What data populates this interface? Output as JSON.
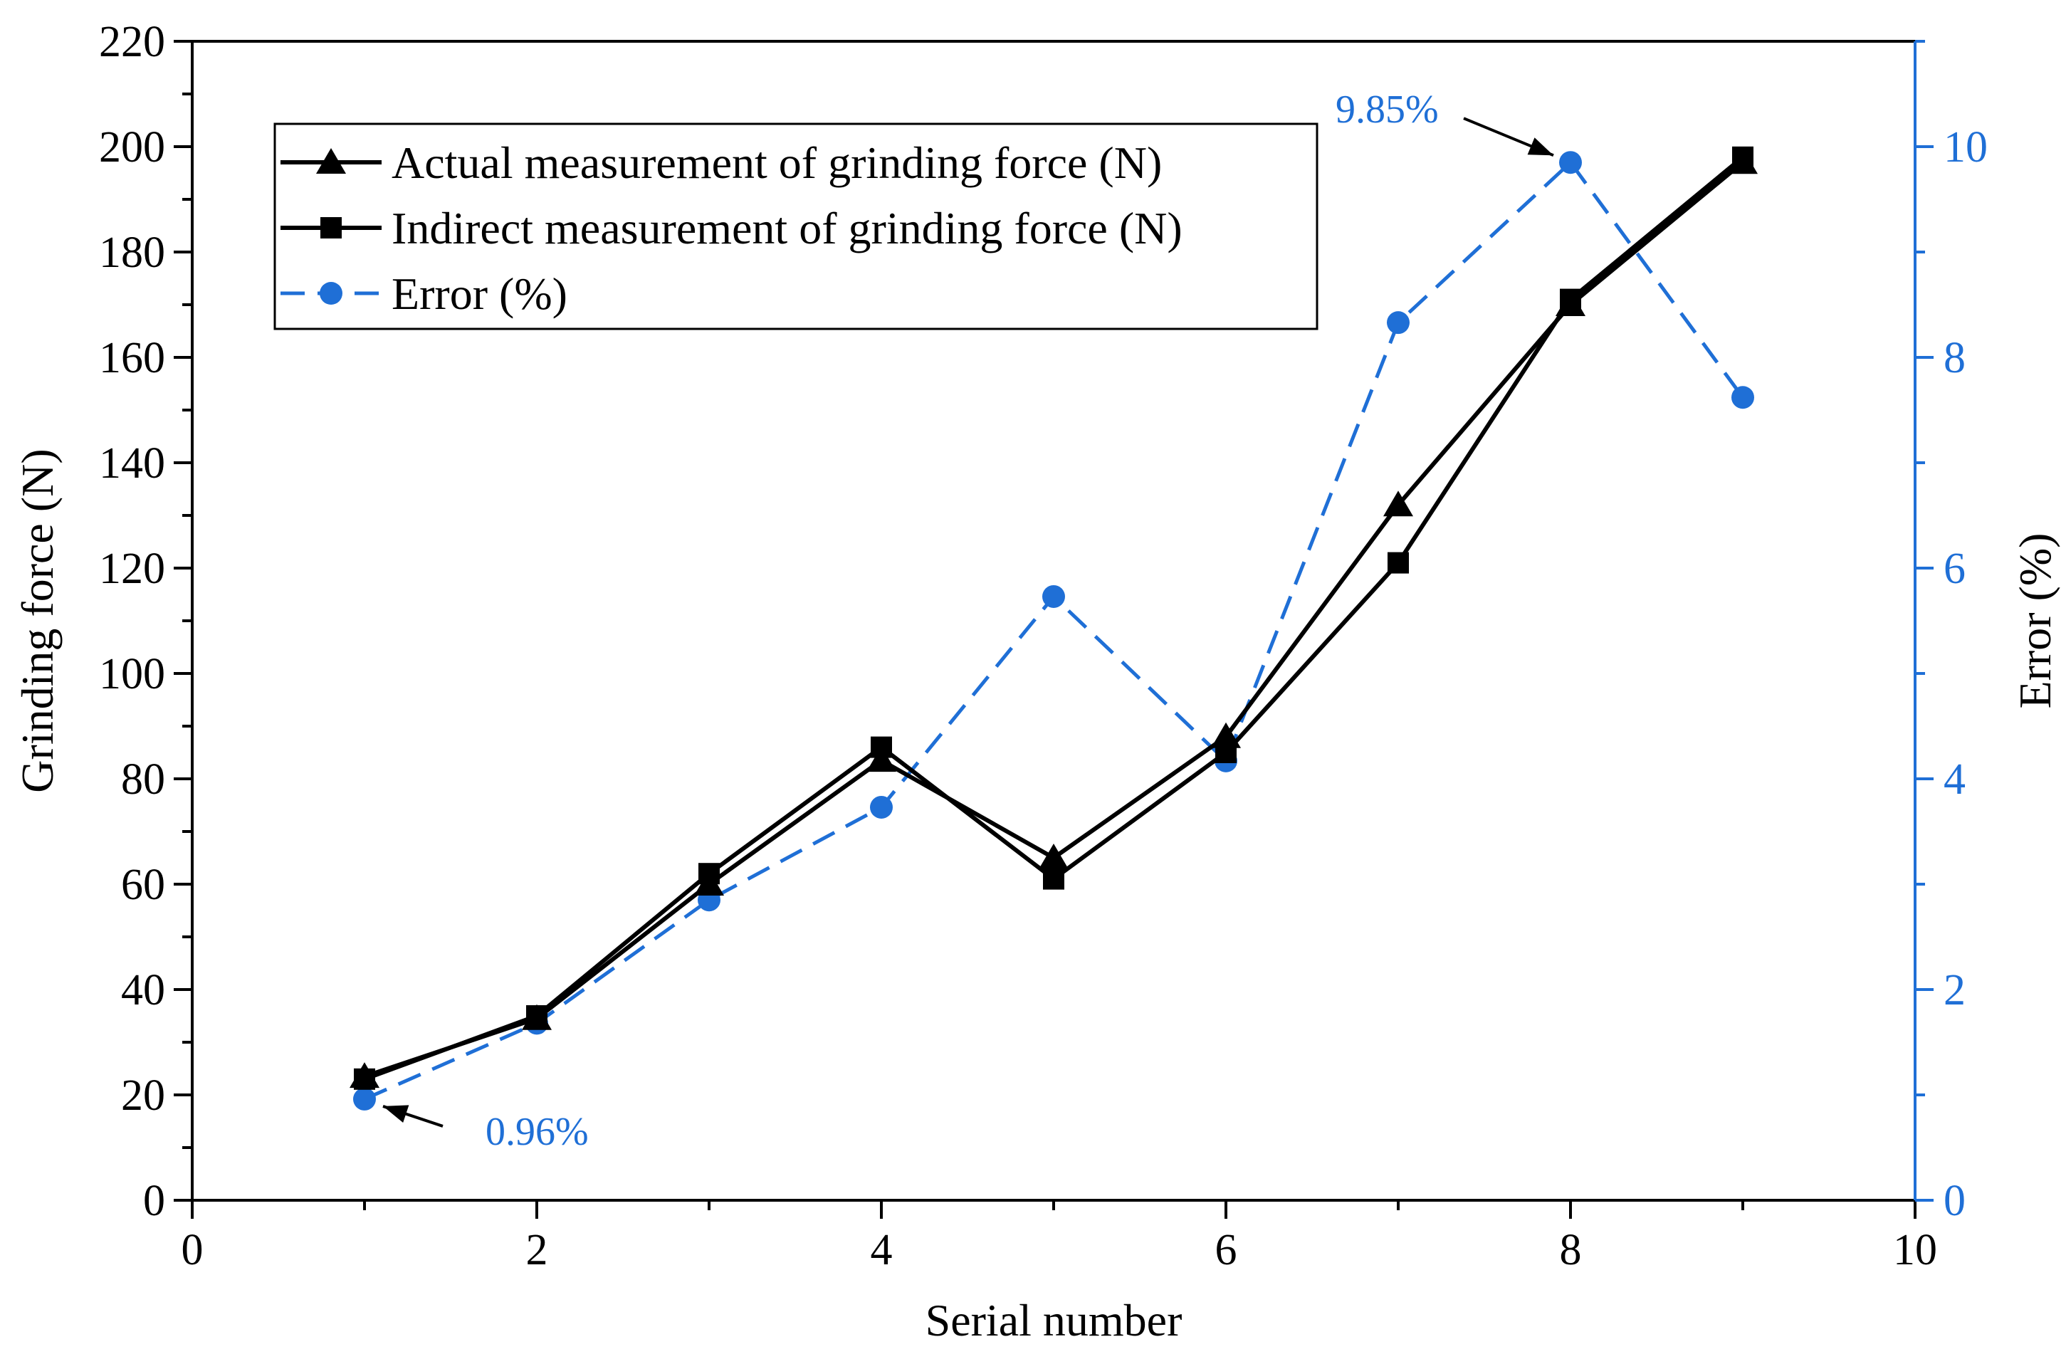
{
  "chart_data": {
    "type": "line",
    "x": [
      1,
      2,
      3,
      4,
      5,
      6,
      7,
      8,
      9
    ],
    "xlabel": "Serial number",
    "ylabel": "Grinding force (N)",
    "y2label": "Error (%)",
    "xlim": [
      0,
      10
    ],
    "ylim": [
      0,
      220
    ],
    "y2lim": [
      0,
      11
    ],
    "xticks": [
      0,
      2,
      4,
      6,
      8,
      10
    ],
    "yticks": [
      0,
      20,
      40,
      60,
      80,
      100,
      120,
      140,
      160,
      180,
      200,
      220
    ],
    "y2ticks": [
      0,
      2,
      4,
      6,
      8,
      10
    ],
    "grid": false,
    "legend_position": "top-left",
    "colors": {
      "black": "#000000",
      "accent": "#1f6fd6"
    },
    "series": [
      {
        "name": "Actual measurement of grinding force (N)",
        "axis": "left",
        "marker": "triangle",
        "style": "solid",
        "color": "#000000",
        "values": [
          23.5,
          34.5,
          60,
          83.5,
          65,
          88,
          132,
          170,
          197
        ]
      },
      {
        "name": "Indirect measurement of grinding force (N)",
        "axis": "left",
        "marker": "square",
        "style": "solid",
        "color": "#000000",
        "values": [
          23,
          35,
          62,
          86,
          61,
          85,
          121,
          171,
          198
        ]
      },
      {
        "name": "Error (%)",
        "axis": "right",
        "marker": "circle",
        "style": "dashed",
        "color": "#1f6fd6",
        "values": [
          0.96,
          1.68,
          2.85,
          3.73,
          5.73,
          4.17,
          8.33,
          9.85,
          7.62
        ]
      }
    ],
    "annotations": [
      {
        "text": "0.96%",
        "x": 1,
        "y": 0.96,
        "axis": "right"
      },
      {
        "text": "9.85%",
        "x": 8,
        "y": 9.85,
        "axis": "right"
      }
    ]
  }
}
